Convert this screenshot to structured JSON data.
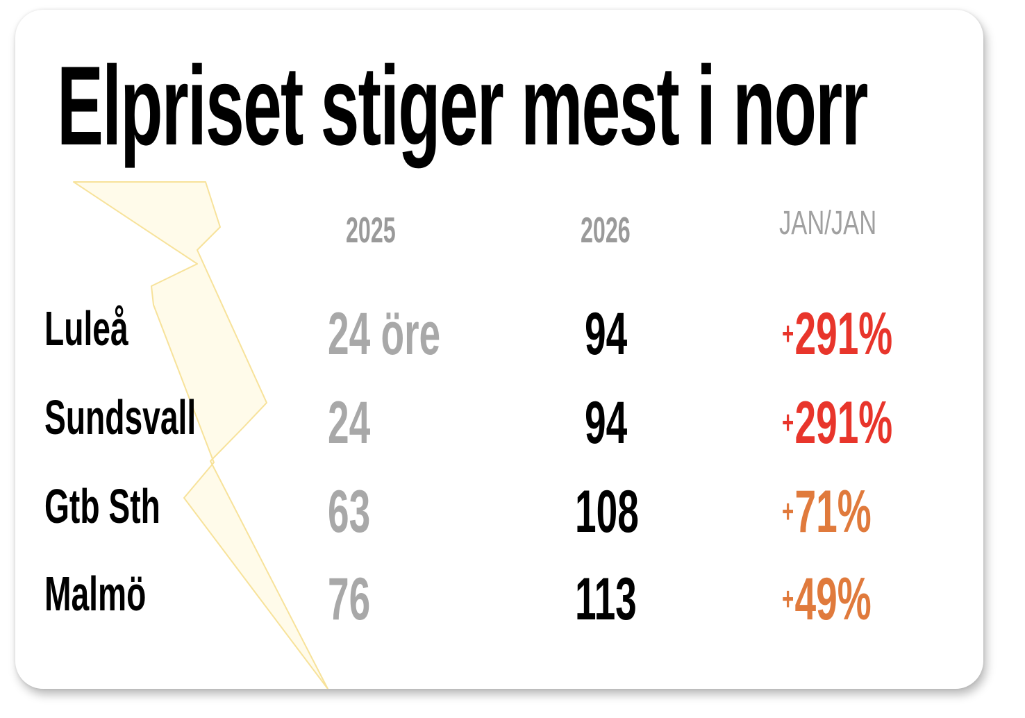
{
  "title": "Elpriset stiger mest i norr",
  "chart_data": {
    "type": "table",
    "columns": [
      "2025",
      "2026",
      "JAN/JAN"
    ],
    "rows": [
      {
        "city": "Luleå",
        "v2025": "24 öre",
        "v2026": "94",
        "change_sign": "+",
        "change": "291%"
      },
      {
        "city": "Sundsvall",
        "v2025": "24",
        "v2026": "94",
        "change_sign": "+",
        "change": "291%"
      },
      {
        "city": "Gtb Sth",
        "v2025": "63",
        "v2026": "108",
        "change_sign": "+",
        "change": "71%"
      },
      {
        "city": "Malmö",
        "v2025": "76",
        "v2026": "113",
        "change_sign": "+",
        "change": "49%"
      }
    ]
  },
  "colors": {
    "high_change": "#e8352b",
    "mid_change": "#e07a3c",
    "old_value": "#a8a8a8",
    "bolt_fill": "#fffbea",
    "bolt_stroke": "#f7e29a"
  }
}
